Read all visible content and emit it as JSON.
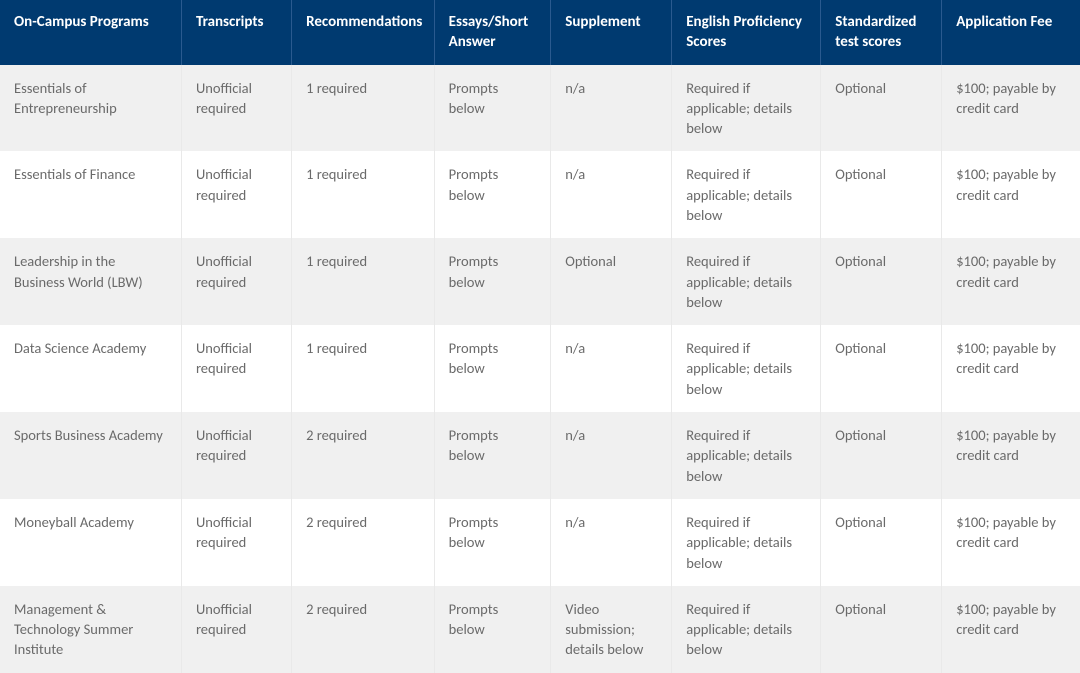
{
  "table": {
    "header_bg": "#003a70",
    "header_text_color": "#ffffff",
    "row_odd_bg": "#f0f0f0",
    "row_even_bg": "#ffffff",
    "cell_text_color": "#6a6a6a",
    "header_fontsize": 15,
    "cell_fontsize": 14.5,
    "columns": [
      {
        "label": "On-Campus Programs",
        "width_pct": 16.8
      },
      {
        "label": "Transcripts",
        "width_pct": 10.2
      },
      {
        "label": "Recommendations",
        "width_pct": 13.2
      },
      {
        "label": "Essays/Short Answer",
        "width_pct": 10.8
      },
      {
        "label": "Supplement",
        "width_pct": 11.2
      },
      {
        "label": "English Proficiency Scores",
        "width_pct": 13.8
      },
      {
        "label": "Standardized test scores",
        "width_pct": 11.2
      },
      {
        "label": "Application Fee",
        "width_pct": 12.8
      }
    ],
    "rows": [
      [
        "Essentials of Entrepreneurship",
        "Unofficial required",
        "1 required",
        "Prompts below",
        "n/a",
        "Required if applicable; details below",
        "Optional",
        "$100; payable by credit card"
      ],
      [
        "Essentials of Finance",
        "Unofficial required",
        "1 required",
        "Prompts below",
        "n/a",
        "Required if applicable; details below",
        "Optional",
        "$100; payable by credit card"
      ],
      [
        "Leadership in the Business World (LBW)",
        "Unofficial required",
        "1 required",
        "Prompts below",
        "Optional",
        "Required if applicable; details below",
        "Optional",
        "$100; payable by credit card"
      ],
      [
        "Data Science Academy",
        "Unofficial required",
        "1 required",
        "Prompts below",
        "n/a",
        "Required if applicable; details below",
        "Optional",
        "$100; payable by credit card"
      ],
      [
        "Sports Business Academy",
        "Unofficial required",
        "2 required",
        "Prompts below",
        "n/a",
        "Required if applicable; details below",
        "Optional",
        "$100; payable by credit card"
      ],
      [
        "Moneyball Academy",
        "Unofficial required",
        "2 required",
        "Prompts below",
        "n/a",
        "Required if applicable; details below",
        "Optional",
        "$100; payable by credit card"
      ],
      [
        "Management & Technology Summer Institute",
        "Unofficial required",
        "2 required",
        "Prompts below",
        "Video submission; details below",
        "Required if applicable; details below",
        "Optional",
        "$100; payable by credit card"
      ]
    ]
  }
}
